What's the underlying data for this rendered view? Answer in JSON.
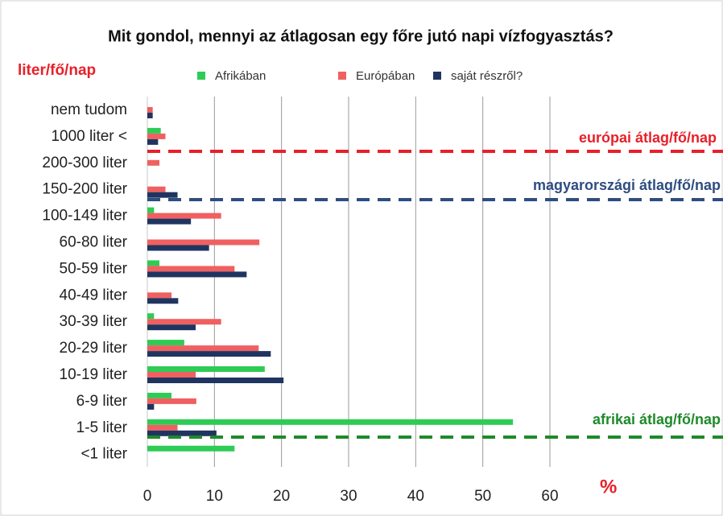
{
  "chart_data": {
    "type": "hbar",
    "title": "Mit gondol, mennyi az átlagosan egy főre  jutó napi vízfogyasztás?",
    "y_label": "liter/fő/nap",
    "x_label": "%",
    "categories": [
      "nem tudom",
      "1000 liter <",
      "200-300 liter",
      "150-200 liter",
      "100-149 liter",
      "60-80 liter",
      "50-59 liter",
      "40-49 liter",
      "30-39 liter",
      "20-29 liter",
      "10-19 liter",
      "6-9 liter",
      "1-5 liter",
      "<1 liter"
    ],
    "series": [
      {
        "name": "Afrikában",
        "color": "#2ecc55",
        "values": [
          0,
          2,
          0,
          0,
          1,
          0,
          1.8,
          0,
          1,
          5.5,
          17.5,
          3.6,
          54.5,
          13
        ]
      },
      {
        "name": "Európában",
        "color": "#f06060",
        "values": [
          0.8,
          2.7,
          1.8,
          2.7,
          11,
          16.7,
          13,
          3.6,
          11,
          16.6,
          7.2,
          7.3,
          4.5,
          0
        ]
      },
      {
        "name": "saját részről?",
        "color": "#1f3560",
        "values": [
          0.8,
          1.6,
          0,
          4.5,
          6.5,
          9.2,
          14.8,
          4.6,
          7.2,
          18.4,
          20.3,
          1,
          10.3,
          0
        ]
      }
    ],
    "xlim": [
      0,
      60
    ],
    "xticks": [
      0,
      10,
      20,
      30,
      40,
      50,
      60
    ],
    "grid": true,
    "annotations": [
      {
        "text": "európai átlag/fő/nap",
        "color": "#e8202a"
      },
      {
        "text": "magyarországi átlag/fő/nap",
        "color": "#2f4d80"
      },
      {
        "text": "afrikai átlag/fő/nap",
        "color": "#1e8a2a"
      }
    ]
  }
}
